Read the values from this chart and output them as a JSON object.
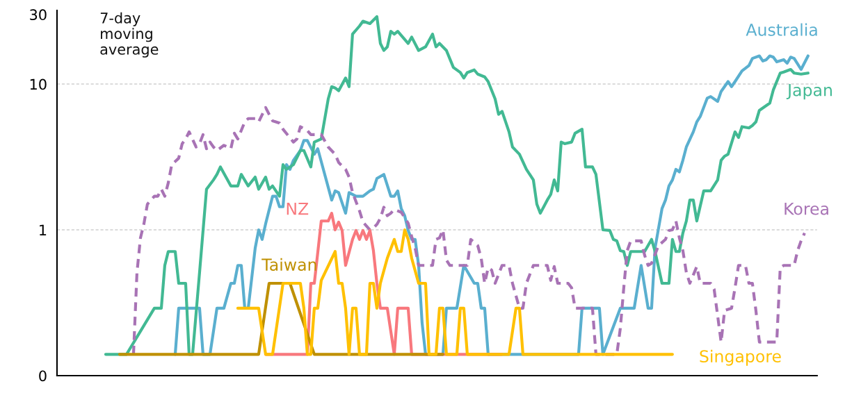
{
  "chart_data": {
    "type": "line",
    "annotations": [
      "7-day\nmoving\naverage"
    ],
    "categories": [
      null,
      null,
      null,
      null,
      null,
      null,
      null,
      null,
      null,
      null,
      null,
      null,
      null,
      null,
      null,
      null,
      null,
      null,
      null,
      null,
      null,
      null,
      null,
      null,
      null,
      null,
      null,
      null,
      null,
      null,
      null,
      null,
      null,
      null,
      null,
      null,
      null,
      null,
      null,
      null,
      null,
      null,
      null,
      null,
      null,
      null,
      null,
      null,
      null,
      null,
      null,
      null,
      null,
      null,
      null,
      null,
      null,
      null,
      null,
      null,
      null,
      null,
      null,
      null,
      null,
      null,
      null,
      null,
      null,
      null,
      null,
      null,
      null,
      null,
      null,
      null,
      null,
      null,
      null,
      null,
      null,
      null,
      null,
      null,
      null,
      null,
      null,
      null,
      null,
      null,
      null,
      null,
      null,
      null,
      null,
      null,
      null,
      null,
      null,
      null,
      null,
      null,
      null,
      null,
      null,
      null,
      null,
      null,
      null,
      null,
      null,
      null,
      null,
      null,
      null,
      null,
      null,
      null,
      null,
      null,
      null,
      null,
      null,
      null,
      null,
      null,
      null,
      null,
      null,
      null,
      null,
      null,
      null,
      null,
      null,
      null,
      null,
      null,
      null,
      null,
      null,
      null,
      null,
      null,
      null,
      null,
      null,
      null,
      null,
      null,
      null,
      null,
      null,
      null,
      null,
      null,
      null,
      null,
      null,
      null,
      null,
      null,
      null,
      null,
      null,
      null,
      null,
      null,
      null,
      null,
      null,
      null,
      null,
      null,
      null,
      null,
      null,
      null,
      null,
      null,
      null,
      null,
      null,
      null,
      null,
      null,
      null,
      null,
      null,
      null,
      null,
      null,
      null,
      null,
      null,
      null,
      null,
      null,
      null,
      null,
      null,
      null,
      null,
      null,
      null,
      null,
      null,
      null,
      null,
      null,
      null,
      null,
      null,
      null,
      null,
      null,
      null,
      null,
      null
    ],
    "log": true,
    "ylim": [
      0.1,
      32
    ],
    "yticks": [
      {
        "value": 0.1,
        "label": "0"
      },
      1,
      10,
      30
    ],
    "ref_lines": [
      {
        "axis": "y",
        "value": 1,
        "label": null,
        "color": "#d0d0d0",
        "line_style": "dashed"
      },
      {
        "axis": "y",
        "value": 10,
        "label": null,
        "color": "#d0d0d0",
        "line_style": "dashed"
      }
    ],
    "series": [
      {
        "name": "Australia",
        "color": "#5aafcf",
        "values": [
          null,
          null,
          null,
          null,
          null,
          null,
          null,
          null,
          null,
          null,
          null,
          null,
          null,
          null,
          null,
          null,
          null,
          null,
          null,
          null,
          null,
          null,
          null,
          null,
          null,
          null,
          null,
          null,
          null,
          null,
          null,
          null,
          null,
          null,
          0.14,
          0.29,
          null,
          null,
          null,
          null,
          null,
          0.29,
          0.14,
          null,
          0.14,
          null,
          0.29,
          null,
          0.29,
          null,
          0.43,
          0.43,
          0.57,
          0.57,
          0.29,
          0.29,
          null,
          0.75,
          1.0,
          0.86,
          1.1,
          null,
          1.7,
          1.7,
          1.44,
          1.44,
          2.8,
          2.6,
          3.0,
          null,
          3.5,
          4.1,
          4.1,
          null,
          3.3,
          3.6,
          null,
          2.4,
          null,
          1.6,
          1.85,
          1.8,
          null,
          1.3,
          1.8,
          null,
          1.7,
          null,
          1.7,
          null,
          1.85,
          1.9,
          2.25,
          null,
          2.4,
          null,
          1.7,
          1.7,
          1.85,
          1.4,
          1.25,
          0.99,
          0.86,
          0.86,
          0.57,
          0.23,
          0.14,
          null,
          null,
          null,
          null,
          0.14,
          0.29,
          null,
          null,
          0.29,
          null,
          0.57,
          null,
          null,
          0.43,
          0.43,
          0.29,
          0.29,
          0.14,
          null,
          null,
          null,
          null,
          null,
          null,
          null,
          null,
          null,
          null,
          null,
          null,
          null,
          null,
          null,
          null,
          null,
          null,
          null,
          null,
          null,
          null,
          null,
          null,
          null,
          0.14,
          0.29,
          null,
          null,
          null,
          null,
          0.29,
          0.14,
          null,
          null,
          null,
          null,
          0.29,
          null,
          null,
          null,
          0.29,
          null,
          0.57,
          null,
          0.29,
          0.29,
          0.75,
          null,
          1.4,
          1.6,
          2.0,
          2.2,
          2.6,
          2.5,
          3.0,
          3.7,
          null,
          4.7,
          5.5,
          6.0,
          null,
          8.0,
          8.2,
          null,
          7.6,
          8.9,
          null,
          10.4,
          9.6,
          10.4,
          null,
          12.3,
          null,
          13.4,
          15.0,
          null,
          15.6,
          14.4,
          14.7,
          15.6,
          15.3,
          14.2,
          null,
          14.7,
          13.9,
          15.3,
          15.0,
          null,
          12.6,
          null,
          15.6,
          null,
          null
        ]
      },
      {
        "name": "Japan",
        "color": "#42b993",
        "values": [
          null,
          null,
          null,
          null,
          null,
          null,
          null,
          null,
          null,
          null,
          null,
          null,
          null,
          null,
          0.14,
          null,
          null,
          null,
          null,
          null,
          0.14,
          null,
          null,
          null,
          null,
          null,
          null,
          null,
          0.29,
          null,
          0.29,
          0.57,
          0.71,
          null,
          0.71,
          0.43,
          null,
          0.43,
          0.14,
          0.14,
          null,
          0.51,
          null,
          1.9,
          null,
          2.2,
          2.4,
          2.7,
          null,
          null,
          2.0,
          null,
          2.0,
          2.4,
          null,
          2.0,
          null,
          2.3,
          1.9,
          null,
          2.3,
          1.9,
          2.0,
          null,
          1.7,
          2.8,
          2.6,
          null,
          2.8,
          null,
          3.5,
          3.5,
          null,
          2.7,
          4.0,
          null,
          4.2,
          null,
          7.9,
          9.6,
          9.4,
          9.0,
          null,
          11,
          9.6,
          22,
          null,
          25,
          27,
          null,
          26,
          null,
          29,
          19,
          17,
          18,
          23,
          22,
          23,
          null,
          null,
          19,
          21,
          null,
          17,
          null,
          18,
          null,
          22,
          18,
          19,
          null,
          17,
          null,
          13,
          null,
          12,
          11,
          12,
          null,
          12.5,
          11.7,
          null,
          11.2,
          10.4,
          null,
          7.9,
          6.2,
          6.5,
          null,
          4.7,
          3.7,
          null,
          3.3,
          null,
          2.6,
          null,
          2.2,
          1.5,
          1.3,
          null,
          1.6,
          1.75,
          2.2,
          1.85,
          4.0,
          3.9,
          null,
          4.0,
          4.6,
          null,
          4.9,
          2.7,
          null,
          2.7,
          2.4,
          null,
          1.0,
          null,
          0.99,
          0.86,
          0.84,
          0.72,
          0.71,
          0.57,
          0.71,
          null,
          null,
          null,
          0.71,
          null,
          0.86,
          0.71,
          null,
          0.43,
          null,
          0.43,
          0.86,
          0.71,
          0.71,
          0.95,
          1.15,
          1.6,
          1.6,
          1.15,
          null,
          1.85,
          null,
          1.85,
          null,
          2.2,
          3.0,
          3.2,
          3.3,
          null,
          4.7,
          4.3,
          5.1,
          null,
          5.0,
          5.2,
          5.5,
          6.6,
          null,
          null,
          7.4,
          9.1,
          null,
          11.9,
          12.1,
          null,
          12.6,
          11.9,
          null,
          11.7,
          null,
          11.9,
          null,
          null
        ]
      },
      {
        "name": "Korea",
        "color": "#a873b5",
        "line_style": "dashed",
        "values": [
          null,
          null,
          null,
          null,
          null,
          null,
          null,
          null,
          null,
          null,
          null,
          null,
          null,
          null,
          null,
          null,
          null,
          null,
          null,
          null,
          null,
          null,
          0.14,
          0.51,
          0.88,
          1.1,
          1.5,
          null,
          1.7,
          1.7,
          1.9,
          1.7,
          2.1,
          2.8,
          null,
          3.1,
          3.9,
          4.2,
          4.7,
          null,
          3.7,
          3.9,
          4.5,
          3.6,
          4.0,
          3.7,
          3.5,
          null,
          3.8,
          null,
          3.6,
          4.6,
          4.2,
          null,
          5.5,
          5.8,
          null,
          5.8,
          5.5,
          null,
          6.9,
          6.2,
          5.6,
          null,
          5.4,
          4.9,
          null,
          null,
          4.0,
          4.2,
          5.1,
          null,
          4.8,
          4.5,
          null,
          null,
          4.5,
          null,
          3.7,
          null,
          3.3,
          2.9,
          null,
          2.6,
          2.3,
          1.8,
          null,
          1.35,
          1.13,
          null,
          1.0,
          1.03,
          1.09,
          1.2,
          1.43,
          1.25,
          1.3,
          1.38,
          null,
          1.32,
          null,
          1.11,
          0.9,
          0.75,
          0.57,
          null,
          null,
          null,
          0.57,
          0.86,
          0.88,
          1.0,
          0.62,
          0.57,
          null,
          null,
          null,
          null,
          0.57,
          0.86,
          null,
          0.78,
          0.64,
          0.43,
          0.55,
          0.53,
          0.43,
          null,
          0.57,
          null,
          0.57,
          0.43,
          null,
          0.29,
          0.29,
          0.43,
          null,
          0.57,
          null,
          null,
          0.57,
          0.57,
          0.45,
          0.56,
          0.43,
          null,
          null,
          0.43,
          0.4,
          0.29,
          null,
          null,
          null,
          null,
          0.29,
          0.14,
          null,
          null,
          null,
          null,
          null,
          0.14,
          0.21,
          0.4,
          0.72,
          0.84,
          null,
          null,
          0.84,
          0.67,
          0.57,
          0.59,
          null,
          0.78,
          null,
          0.86,
          0.99,
          1.0,
          1.15,
          0.88,
          0.72,
          0.51,
          0.43,
          null,
          0.56,
          0.43,
          null,
          null,
          0.43,
          0.39,
          null,
          0.17,
          0.28,
          null,
          0.29,
          0.4,
          0.57,
          null,
          0.57,
          0.43,
          0.43,
          0.28,
          0.17,
          null,
          null,
          null,
          null,
          0.17,
          0.55,
          0.57,
          null,
          null,
          0.57,
          0.72,
          0.84,
          0.95,
          null,
          null,
          null
        ]
      },
      {
        "name": "NZ",
        "color": "#f8787d",
        "values": [
          null,
          null,
          null,
          null,
          null,
          null,
          null,
          null,
          null,
          null,
          null,
          null,
          null,
          null,
          null,
          null,
          null,
          null,
          null,
          null,
          null,
          null,
          null,
          null,
          null,
          null,
          null,
          null,
          null,
          null,
          null,
          null,
          null,
          null,
          null,
          null,
          null,
          null,
          null,
          null,
          null,
          null,
          null,
          null,
          null,
          null,
          null,
          null,
          null,
          null,
          null,
          null,
          null,
          null,
          null,
          null,
          null,
          null,
          null,
          null,
          0.14,
          null,
          null,
          null,
          null,
          null,
          null,
          null,
          null,
          null,
          null,
          null,
          0.14,
          0.43,
          0.43,
          0.7,
          1.15,
          null,
          1.15,
          1.3,
          1.0,
          1.13,
          0.99,
          0.57,
          null,
          0.86,
          0.99,
          0.86,
          0.99,
          0.86,
          0.99,
          0.72,
          0.43,
          0.29,
          null,
          0.29,
          null,
          0.14,
          0.29,
          null,
          null,
          0.29,
          0.14,
          null,
          null,
          null,
          null,
          null,
          null,
          null,
          null,
          null,
          null,
          null,
          null,
          null,
          null,
          null,
          null,
          null,
          null,
          null,
          null,
          null,
          null,
          null,
          null,
          null,
          0.14,
          null,
          null,
          null,
          null,
          null,
          null,
          null,
          null,
          null,
          null,
          null,
          null,
          null,
          null,
          null,
          null,
          null,
          null,
          null,
          null,
          null,
          null,
          null,
          null,
          null,
          null,
          null,
          null,
          null,
          null,
          null,
          null,
          null,
          null,
          null,
          null,
          null,
          null,
          null,
          null,
          null,
          null,
          null,
          null,
          null,
          null,
          null,
          null,
          null,
          null,
          null,
          null,
          null,
          null,
          null,
          null,
          null,
          null,
          null,
          null,
          null,
          null,
          null,
          null,
          null,
          null,
          null,
          null,
          null,
          null,
          null,
          null,
          null,
          null,
          null,
          null,
          null,
          null,
          null,
          null,
          null,
          null,
          null,
          null,
          null,
          null,
          null,
          null,
          null,
          null
        ]
      },
      {
        "name": "Taiwan",
        "color": "#bf9000",
        "values": [
          null,
          null,
          null,
          null,
          null,
          null,
          null,
          null,
          null,
          null,
          null,
          null,
          null,
          null,
          null,
          null,
          null,
          null,
          0.14,
          null,
          null,
          null,
          null,
          null,
          null,
          null,
          null,
          null,
          null,
          null,
          null,
          null,
          null,
          null,
          null,
          null,
          null,
          null,
          null,
          null,
          null,
          null,
          null,
          null,
          null,
          null,
          null,
          null,
          null,
          null,
          null,
          null,
          null,
          null,
          null,
          null,
          null,
          null,
          0.14,
          null,
          null,
          0.43,
          null,
          null,
          null,
          null,
          null,
          0.43,
          null,
          null,
          null,
          null,
          null,
          null,
          0.14,
          null,
          null,
          null,
          null,
          null,
          null,
          null,
          null,
          null,
          null,
          null,
          null,
          null,
          null,
          null,
          null,
          null,
          null,
          null,
          null,
          null,
          null,
          null,
          null,
          null,
          null,
          null,
          null,
          null,
          null,
          null,
          null,
          null,
          null,
          null,
          null,
          0.14,
          null,
          null,
          null,
          null,
          null,
          null,
          null,
          null,
          null,
          null,
          null,
          null,
          null,
          null,
          null,
          null,
          null,
          null,
          null,
          null,
          null,
          null,
          null,
          null,
          null,
          null,
          null,
          null,
          null,
          null,
          null,
          null,
          null,
          null,
          null,
          null,
          null,
          null,
          null,
          null,
          null,
          null,
          null,
          null,
          null,
          null,
          null,
          null,
          null,
          null,
          null,
          null,
          null,
          null,
          null,
          null,
          null,
          null,
          null,
          null,
          null,
          null,
          null,
          null,
          null,
          null,
          null,
          null,
          null,
          null,
          null,
          null,
          null,
          null,
          null,
          null,
          null,
          null,
          null,
          null,
          null,
          null,
          null,
          null,
          null,
          null,
          null,
          null,
          null,
          null,
          null,
          null,
          null,
          null,
          null,
          null,
          null,
          null,
          null,
          null,
          null,
          null,
          null,
          null,
          null,
          null,
          null
        ]
      },
      {
        "name": "Singapore",
        "color": "#ffc000",
        "values": [
          null,
          null,
          null,
          null,
          null,
          null,
          null,
          null,
          null,
          null,
          null,
          null,
          null,
          null,
          null,
          null,
          null,
          null,
          null,
          null,
          null,
          null,
          null,
          null,
          null,
          null,
          null,
          null,
          null,
          null,
          null,
          null,
          null,
          null,
          null,
          null,
          null,
          null,
          null,
          null,
          null,
          null,
          null,
          null,
          null,
          null,
          null,
          null,
          null,
          null,
          null,
          null,
          0.29,
          null,
          null,
          null,
          null,
          null,
          0.29,
          null,
          0.14,
          null,
          0.14,
          null,
          null,
          0.43,
          null,
          null,
          null,
          null,
          0.43,
          0.29,
          0.14,
          0.14,
          0.29,
          0.29,
          0.45,
          null,
          null,
          null,
          0.71,
          0.43,
          0.43,
          0.29,
          0.14,
          0.29,
          0.29,
          0.14,
          null,
          0.14,
          0.43,
          0.43,
          0.29,
          0.43,
          null,
          0.64,
          null,
          0.86,
          0.71,
          0.71,
          1.0,
          0.86,
          0.64,
          null,
          0.43,
          null,
          0.43,
          0.14,
          null,
          0.14,
          0.29,
          0.29,
          0.14,
          null,
          null,
          0.14,
          0.29,
          0.29,
          0.14,
          null,
          null,
          null,
          null,
          null,
          null,
          null,
          null,
          null,
          null,
          null,
          0.14,
          null,
          0.29,
          0.29,
          0.14,
          null,
          null,
          null,
          null,
          null,
          null,
          null,
          null,
          null,
          null,
          null,
          null,
          null,
          null,
          null,
          null,
          null,
          null,
          null,
          null,
          null,
          null,
          null,
          null,
          null,
          null,
          null,
          null,
          null,
          null,
          null,
          null,
          null,
          null,
          null,
          null,
          null,
          null,
          null,
          null,
          null,
          null,
          0.14,
          null,
          null,
          null,
          null,
          null,
          null,
          null,
          null,
          null,
          null,
          null,
          null,
          null,
          null,
          null,
          null,
          null,
          null,
          null,
          null,
          null,
          null,
          null,
          null,
          null,
          null,
          null,
          null,
          null,
          null,
          null,
          null,
          null,
          null,
          null,
          null,
          null,
          null,
          null,
          null,
          null
        ]
      }
    ]
  }
}
